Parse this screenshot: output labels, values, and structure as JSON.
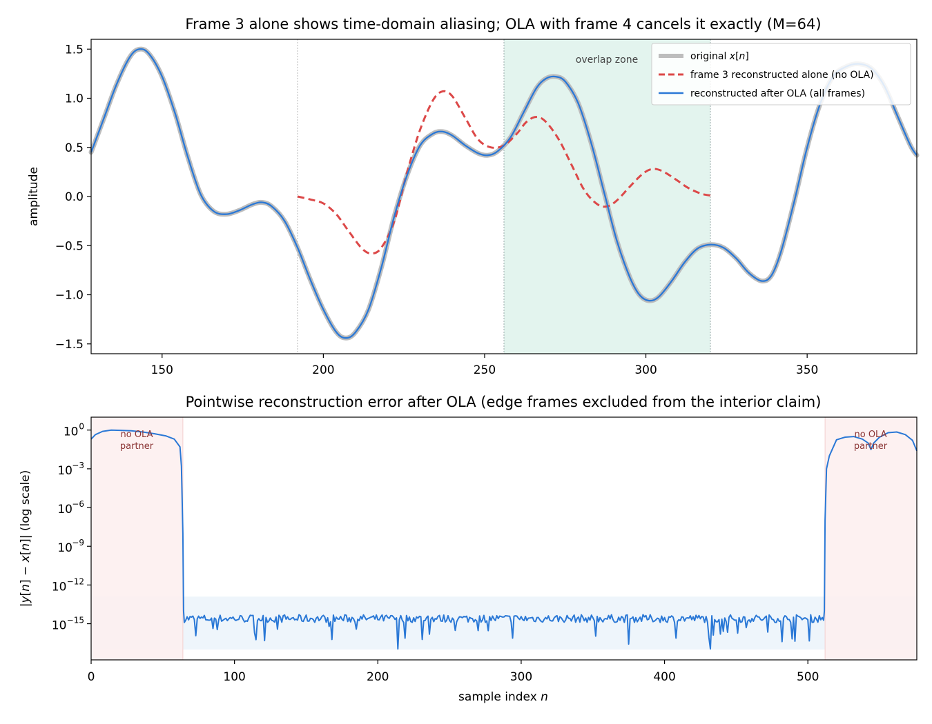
{
  "chart_data": [
    {
      "type": "line",
      "title": "Frame 3 alone shows time-domain aliasing; OLA with frame 4 cancels it exactly (M=64)",
      "xlabel": "",
      "ylabel": "amplitude",
      "xlim": [
        128,
        384
      ],
      "ylim": [
        -1.6,
        1.6
      ],
      "xticks": [
        150,
        200,
        250,
        300,
        350
      ],
      "yticks": [
        -1.5,
        -1.0,
        -0.5,
        0.0,
        0.5,
        1.0,
        1.5
      ],
      "xtick_labels": [
        "150",
        "200",
        "250",
        "300",
        "350"
      ],
      "ytick_labels": [
        "−1.5",
        "−1.0",
        "−0.5",
        "0.0",
        "0.5",
        "1.0",
        "1.5"
      ],
      "grid": false,
      "legend_position": "top-right",
      "frame_boundary": 192,
      "overlap_zone": [
        256,
        320
      ],
      "overlap_label": "overlap zone",
      "series": [
        {
          "name": "original x[n]",
          "color": "#bdbdbd",
          "style": "solid-thick",
          "points": [
            [
              128,
              0.45
            ],
            [
              132,
              0.8
            ],
            [
              136,
              1.15
            ],
            [
              140,
              1.42
            ],
            [
              143,
              1.5
            ],
            [
              146,
              1.45
            ],
            [
              150,
              1.22
            ],
            [
              154,
              0.85
            ],
            [
              158,
              0.4
            ],
            [
              162,
              0.02
            ],
            [
              166,
              -0.15
            ],
            [
              170,
              -0.18
            ],
            [
              174,
              -0.14
            ],
            [
              178,
              -0.08
            ],
            [
              181,
              -0.06
            ],
            [
              184,
              -0.1
            ],
            [
              188,
              -0.25
            ],
            [
              192,
              -0.52
            ],
            [
              196,
              -0.85
            ],
            [
              200,
              -1.15
            ],
            [
              204,
              -1.38
            ],
            [
              207,
              -1.44
            ],
            [
              210,
              -1.38
            ],
            [
              214,
              -1.15
            ],
            [
              218,
              -0.72
            ],
            [
              222,
              -0.2
            ],
            [
              226,
              0.22
            ],
            [
              230,
              0.52
            ],
            [
              234,
              0.64
            ],
            [
              237,
              0.66
            ],
            [
              240,
              0.62
            ],
            [
              244,
              0.52
            ],
            [
              248,
              0.44
            ],
            [
              251,
              0.42
            ],
            [
              254,
              0.46
            ],
            [
              258,
              0.6
            ],
            [
              262,
              0.85
            ],
            [
              266,
              1.1
            ],
            [
              269,
              1.2
            ],
            [
              272,
              1.22
            ],
            [
              275,
              1.17
            ],
            [
              279,
              0.95
            ],
            [
              283,
              0.55
            ],
            [
              287,
              0.05
            ],
            [
              291,
              -0.45
            ],
            [
              295,
              -0.82
            ],
            [
              298,
              -1.0
            ],
            [
              301,
              -1.06
            ],
            [
              304,
              -1.02
            ],
            [
              308,
              -0.86
            ],
            [
              312,
              -0.67
            ],
            [
              316,
              -0.53
            ],
            [
              320,
              -0.49
            ],
            [
              324,
              -0.52
            ],
            [
              328,
              -0.63
            ],
            [
              332,
              -0.78
            ],
            [
              336,
              -0.86
            ],
            [
              339,
              -0.8
            ],
            [
              342,
              -0.55
            ],
            [
              346,
              -0.05
            ],
            [
              350,
              0.5
            ],
            [
              354,
              0.94
            ],
            [
              358,
              1.22
            ],
            [
              362,
              1.32
            ],
            [
              366,
              1.35
            ],
            [
              370,
              1.3
            ],
            [
              374,
              1.12
            ],
            [
              378,
              0.82
            ],
            [
              382,
              0.52
            ],
            [
              384,
              0.42
            ]
          ]
        },
        {
          "name": "frame 3 reconstructed alone (no OLA)",
          "color": "#dc4848",
          "style": "dashed",
          "points": [
            [
              192,
              0.0
            ],
            [
              196,
              -0.03
            ],
            [
              200,
              -0.07
            ],
            [
              204,
              -0.18
            ],
            [
              208,
              -0.36
            ],
            [
              212,
              -0.53
            ],
            [
              215,
              -0.58
            ],
            [
              218,
              -0.52
            ],
            [
              222,
              -0.25
            ],
            [
              226,
              0.25
            ],
            [
              230,
              0.68
            ],
            [
              234,
              0.98
            ],
            [
              237,
              1.07
            ],
            [
              240,
              1.02
            ],
            [
              244,
              0.8
            ],
            [
              248,
              0.58
            ],
            [
              252,
              0.5
            ],
            [
              256,
              0.52
            ],
            [
              260,
              0.64
            ],
            [
              263,
              0.76
            ],
            [
              266,
              0.81
            ],
            [
              269,
              0.76
            ],
            [
              273,
              0.58
            ],
            [
              277,
              0.32
            ],
            [
              281,
              0.06
            ],
            [
              285,
              -0.08
            ],
            [
              288,
              -0.1
            ],
            [
              291,
              -0.04
            ],
            [
              295,
              0.1
            ],
            [
              299,
              0.23
            ],
            [
              302,
              0.28
            ],
            [
              305,
              0.26
            ],
            [
              309,
              0.18
            ],
            [
              313,
              0.09
            ],
            [
              317,
              0.03
            ],
            [
              320,
              0.01
            ]
          ]
        },
        {
          "name": "reconstructed after OLA (all frames)",
          "color": "#2a78d6",
          "style": "solid",
          "follows": "original x[n]"
        }
      ]
    },
    {
      "type": "line",
      "title": "Pointwise reconstruction error after OLA (edge frames excluded from the interior claim)",
      "xlabel": "sample index n",
      "ylabel": "|y[n] − x[n]| (log scale)",
      "y_scale": "log",
      "xlim": [
        0,
        576
      ],
      "ylim_log10": [
        -17.8,
        1.0
      ],
      "xticks": [
        0,
        100,
        200,
        300,
        400,
        500
      ],
      "xtick_labels": [
        "0",
        "100",
        "200",
        "300",
        "400",
        "500"
      ],
      "ytick_exponents": [
        0,
        -3,
        -6,
        -9,
        -12,
        -15
      ],
      "ytick_labels": [
        "10",
        "10",
        "10",
        "10",
        "10",
        "10"
      ],
      "ytick_superscripts": [
        "0",
        "−3",
        "−6",
        "−9",
        "−12",
        "−15"
      ],
      "grid": false,
      "edge_regions": [
        [
          0,
          64
        ],
        [
          512,
          576
        ]
      ],
      "edge_label_line1": "no OLA",
      "edge_label_line2": "partner",
      "machine_eps_band_log10": [
        -17.0,
        -12.9
      ],
      "series": [
        {
          "name": "error",
          "color": "#2a78d6",
          "edge_left_points": [
            [
              0,
              -0.7
            ],
            [
              3,
              -0.35
            ],
            [
              8,
              -0.1
            ],
            [
              14,
              0.0
            ],
            [
              20,
              -0.02
            ],
            [
              28,
              -0.05
            ],
            [
              36,
              -0.15
            ],
            [
              44,
              -0.28
            ],
            [
              52,
              -0.45
            ],
            [
              58,
              -0.7
            ],
            [
              62,
              -1.3
            ],
            [
              63,
              -2.8
            ],
            [
              64,
              -8.0
            ],
            [
              64.5,
              -14.0
            ]
          ],
          "edge_right_points": [
            [
              511.5,
              -14.0
            ],
            [
              512,
              -7.0
            ],
            [
              513,
              -3.0
            ],
            [
              515,
              -2.0
            ],
            [
              520,
              -0.75
            ],
            [
              526,
              -0.55
            ],
            [
              532,
              -0.5
            ],
            [
              538,
              -0.7
            ],
            [
              542,
              -1.0
            ],
            [
              544,
              -1.5
            ],
            [
              546,
              -1.0
            ],
            [
              550,
              -0.55
            ],
            [
              556,
              -0.2
            ],
            [
              562,
              -0.15
            ],
            [
              568,
              -0.35
            ],
            [
              573,
              -0.8
            ],
            [
              576,
              -1.6
            ]
          ],
          "interior_range": [
            65,
            511
          ],
          "interior_median_log10": -14.6,
          "interior_spread_log10": 0.55
        }
      ]
    }
  ],
  "colors": {
    "original": "#bdbdbd",
    "frame3": "#dc4848",
    "ola": "#2a78d6",
    "overlap_fill": "#e3f4ee",
    "edge_fill": "#fdeeee",
    "band_fill": "#eef5fb",
    "edge_text": "#8b3535"
  }
}
